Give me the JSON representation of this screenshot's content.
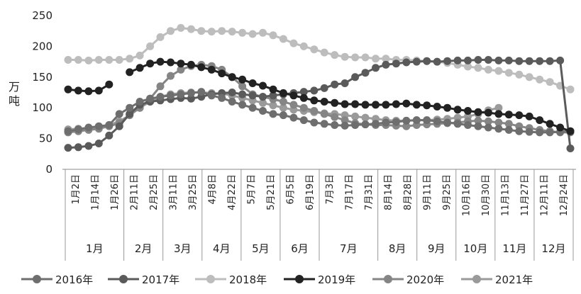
{
  "chart_data": {
    "type": "line",
    "ylabel": "万吨",
    "ylim": [
      0,
      250
    ],
    "yticks": [
      0,
      50,
      100,
      150,
      200,
      250
    ],
    "x_ticks": [
      "1月2日",
      "1月14日",
      "1月26日",
      "2月11日",
      "2月25日",
      "3月11日",
      "3月25日",
      "4月8日",
      "4月22日",
      "5月7日",
      "5月21日",
      "6月5日",
      "6月19日",
      "7月3日",
      "7月17日",
      "7月31日",
      "8月14日",
      "8月28日",
      "9月11日",
      "9月25日",
      "10月16日",
      "10月30日",
      "11月13日",
      "11月27日",
      "12月11日",
      "12月24日"
    ],
    "months": [
      "1月",
      "2月",
      "3月",
      "4月",
      "5月",
      "6月",
      "7月",
      "8月",
      "9月",
      "10月",
      "11月",
      "12月"
    ],
    "legend_position": "bottom",
    "series": [
      {
        "name": "2016年",
        "color": "#6e6e6e",
        "values": [
          62,
          65,
          68,
          70,
          72,
          90,
          100,
          110,
          115,
          118,
          120,
          122,
          124,
          126,
          120,
          116,
          110,
          105,
          100,
          95,
          90,
          88,
          84,
          80,
          76,
          74,
          72,
          71,
          72,
          73,
          74,
          76,
          77,
          79,
          80,
          80,
          78,
          76,
          74,
          72,
          70,
          68,
          66,
          64,
          62,
          61,
          60,
          60,
          61,
          62
        ]
      },
      {
        "name": "2017年",
        "color": "#5a5a5a",
        "values": [
          35,
          36,
          38,
          42,
          55,
          70,
          90,
          105,
          110,
          112,
          114,
          116,
          115,
          118,
          122,
          124,
          125,
          122,
          120,
          118,
          120,
          122,
          124,
          126,
          128,
          132,
          138,
          140,
          150,
          157,
          165,
          170,
          172,
          174,
          175,
          176,
          175,
          176,
          177,
          177,
          178,
          178,
          177,
          177,
          176,
          176,
          176,
          176,
          177,
          34
        ]
      },
      {
        "name": "2018年",
        "color": "#bdbdbd",
        "values": [
          178,
          178,
          177,
          178,
          178,
          178,
          180,
          185,
          200,
          215,
          225,
          230,
          228,
          225,
          224,
          225,
          224,
          222,
          220,
          222,
          218,
          212,
          205,
          200,
          195,
          190,
          186,
          183,
          182,
          182,
          180,
          180,
          178,
          178,
          177,
          176,
          175,
          173,
          170,
          167,
          165,
          162,
          160,
          157,
          154,
          150,
          146,
          142,
          136,
          130
        ]
      },
      {
        "name": "2019年",
        "color": "#222222",
        "values": [
          130,
          128,
          127,
          128,
          138,
          null,
          158,
          165,
          172,
          175,
          174,
          172,
          170,
          166,
          162,
          156,
          150,
          146,
          140,
          136,
          130,
          124,
          120,
          116,
          112,
          110,
          108,
          106,
          106,
          105,
          105,
          105,
          106,
          107,
          105,
          104,
          102,
          100,
          97,
          95,
          93,
          92,
          90,
          89,
          88,
          86,
          80,
          74,
          68,
          62
        ]
      },
      {
        "name": "2020年",
        "color": "#858585",
        "values": [
          60,
          62,
          64,
          66,
          70,
          75,
          88,
          100,
          115,
          135,
          152,
          162,
          168,
          170,
          168,
          162,
          150,
          135,
          122,
          118,
          114,
          110,
          105,
          100,
          95,
          90,
          85,
          80,
          75,
          73,
          72,
          72,
          71,
          70,
          72,
          73,
          74,
          75,
          76,
          78,
          79,
          78,
          76,
          74,
          70,
          67,
          64,
          62,
          60,
          60
        ]
      },
      {
        "name": "2021年",
        "color": "#9a9a9a",
        "values": [
          65,
          66,
          67,
          69,
          72,
          78,
          88,
          100,
          110,
          118,
          122,
          124,
          125,
          125,
          124,
          123,
          120,
          116,
          112,
          108,
          104,
          100,
          97,
          95,
          93,
          91,
          90,
          88,
          86,
          84,
          82,
          80,
          79,
          79,
          80,
          80,
          81,
          82,
          84,
          86,
          90,
          96,
          100,
          null,
          null,
          null,
          null,
          null,
          null,
          null
        ]
      }
    ]
  }
}
